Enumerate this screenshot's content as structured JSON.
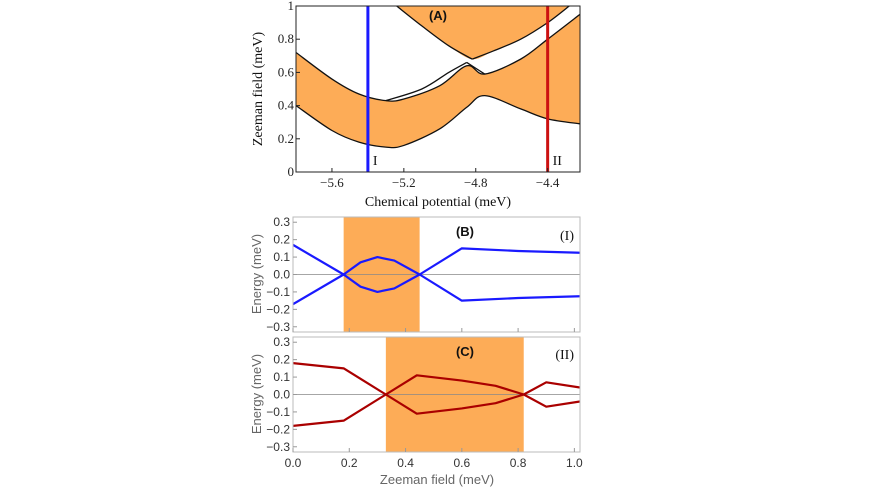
{
  "chart_data": [
    {
      "id": "A",
      "type": "area",
      "panel_label": "(A)",
      "xlabel": "Chemical potential (meV)",
      "ylabel": "Zeeman field (meV)",
      "xlim": [
        -5.8,
        -4.22
      ],
      "ylim": [
        0,
        1
      ],
      "xticks": [
        -5.6,
        -5.2,
        -4.8,
        -4.4
      ],
      "xtick_labels": [
        "−5.6",
        "−5.2",
        "−4.8",
        "−4.4"
      ],
      "yticks": [
        0,
        0.2,
        0.4,
        0.6,
        0.8,
        1
      ],
      "ytick_labels": [
        "0",
        "0.2",
        "0.4",
        "0.6",
        "0.8",
        "1"
      ],
      "colors": {
        "fill": "#fdac57",
        "curve": "#111111"
      },
      "curves": [
        {
          "name": "lower-band-bottom",
          "x": [
            -5.8,
            -5.6,
            -5.45,
            -5.3,
            -5.2,
            -5.0,
            -4.85,
            -4.75,
            -4.55,
            -4.4,
            -4.22
          ],
          "y": [
            0.4,
            0.25,
            0.18,
            0.15,
            0.16,
            0.26,
            0.39,
            0.46,
            0.38,
            0.32,
            0.29
          ]
        },
        {
          "name": "lower-band-top",
          "x": [
            -5.8,
            -5.6,
            -5.45,
            -5.3,
            -5.2,
            -5.0,
            -4.85,
            -4.75,
            -4.55,
            -4.4,
            -4.22
          ],
          "y": [
            0.72,
            0.56,
            0.47,
            0.43,
            0.44,
            0.52,
            0.64,
            0.59,
            0.68,
            0.8,
            0.95
          ]
        },
        {
          "name": "upper-band-left",
          "x": [
            -5.24,
            -5.1,
            -4.95,
            -4.82
          ],
          "y": [
            1.0,
            0.88,
            0.76,
            0.68
          ]
        },
        {
          "name": "upper-band-right",
          "x": [
            -4.82,
            -4.7,
            -4.55,
            -4.4,
            -4.28
          ],
          "y": [
            0.68,
            0.73,
            0.8,
            0.9,
            1.0
          ]
        },
        {
          "name": "upper-band-lower-left",
          "x": [
            -5.3,
            -5.1,
            -4.95,
            -4.85
          ],
          "y": [
            0.43,
            0.5,
            0.6,
            0.66
          ]
        },
        {
          "name": "upper-band-lower-right",
          "x": [
            -4.85,
            -4.75
          ],
          "y": [
            0.66,
            0.59
          ]
        }
      ],
      "vlines": [
        {
          "name": "line-I",
          "x": -5.4,
          "color": "#1a1aff",
          "label": "I"
        },
        {
          "name": "line-II",
          "x": -4.4,
          "color": "#cc1111",
          "label": "II"
        }
      ]
    },
    {
      "id": "B",
      "type": "line",
      "panel_label": "(B)",
      "corner_label": "(I)",
      "xlabel": "",
      "ylabel": "Energy  (meV)",
      "xlim": [
        0,
        1.02
      ],
      "ylim": [
        -0.33,
        0.33
      ],
      "yticks": [
        0.3,
        0.2,
        0.1,
        0.0,
        -0.1,
        -0.2,
        -0.3
      ],
      "ytick_labels": [
        "0.3",
        "0.2",
        "0.1",
        "0.0",
        "−0.1",
        "−0.2",
        "−0.3"
      ],
      "shaded_region": [
        0.18,
        0.45
      ],
      "colors": {
        "fill": "#fdac57",
        "line": "#1a1aff",
        "zero": "#888888"
      },
      "series": [
        {
          "name": "upper",
          "x": [
            0,
            0.18,
            0.24,
            0.3,
            0.36,
            0.45,
            0.6,
            0.8,
            1.02
          ],
          "y": [
            0.17,
            0.0,
            0.07,
            0.1,
            0.08,
            0.0,
            0.15,
            0.135,
            0.125
          ]
        },
        {
          "name": "lower",
          "x": [
            0,
            0.18,
            0.24,
            0.3,
            0.36,
            0.45,
            0.6,
            0.8,
            1.02
          ],
          "y": [
            -0.17,
            0.0,
            -0.07,
            -0.1,
            -0.08,
            0.0,
            -0.15,
            -0.135,
            -0.125
          ]
        }
      ]
    },
    {
      "id": "C",
      "type": "line",
      "panel_label": "(C)",
      "corner_label": "(II)",
      "xlabel": "Zeeman field (meV)",
      "ylabel": "Energy  (meV)",
      "xlim": [
        0,
        1.02
      ],
      "ylim": [
        -0.33,
        0.33
      ],
      "xticks": [
        0,
        0.2,
        0.4,
        0.6,
        0.8,
        1.0
      ],
      "xtick_labels": [
        "0.0",
        "0.2",
        "0.4",
        "0.6",
        "0.8",
        "1.0"
      ],
      "yticks": [
        0.3,
        0.2,
        0.1,
        0.0,
        -0.1,
        -0.2,
        -0.3
      ],
      "ytick_labels": [
        "0.3",
        "0.2",
        "0.1",
        "0.0",
        "−0.1",
        "−0.2",
        "−0.3"
      ],
      "shaded_region": [
        0.33,
        0.82
      ],
      "colors": {
        "fill": "#fdac57",
        "line": "#aa0000",
        "zero": "#888888"
      },
      "series": [
        {
          "name": "upper",
          "x": [
            0,
            0.18,
            0.33,
            0.44,
            0.6,
            0.72,
            0.82,
            0.9,
            1.02
          ],
          "y": [
            0.18,
            0.15,
            0.0,
            0.11,
            0.08,
            0.05,
            0.0,
            0.07,
            0.04
          ]
        },
        {
          "name": "lower",
          "x": [
            0,
            0.18,
            0.33,
            0.44,
            0.6,
            0.72,
            0.82,
            0.9,
            1.02
          ],
          "y": [
            -0.18,
            -0.15,
            0.0,
            -0.11,
            -0.08,
            -0.05,
            0.0,
            -0.07,
            -0.04
          ]
        }
      ]
    }
  ]
}
